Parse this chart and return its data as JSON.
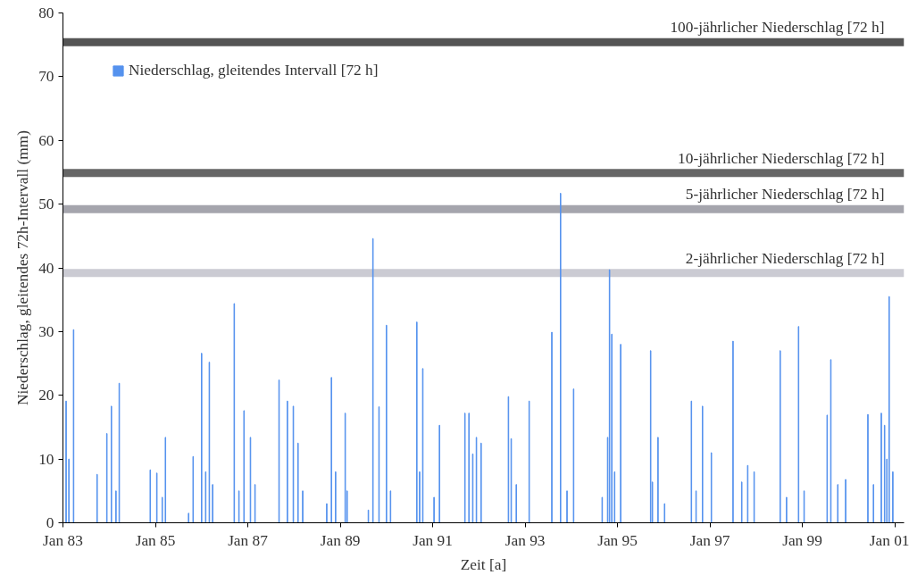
{
  "chart_data": {
    "type": "bar",
    "xlabel": "Zeit [a]",
    "ylabel": "Niederschlag, gleitendes 72h-Intervall (mm)",
    "x": [
      "1983-01-26",
      "1983-02-17",
      "1983-03-26",
      "1983-09-28",
      "1983-12-14",
      "1984-01-19",
      "1984-02-24",
      "1984-03-21",
      "1984-11-21",
      "1985-01-12",
      "1985-02-24",
      "1985-03-21",
      "1985-09-20",
      "1985-10-26",
      "1986-01-01",
      "1986-02-02",
      "1986-03-03",
      "1986-03-29",
      "1986-09-16",
      "1986-10-23",
      "1986-12-02",
      "1987-01-22",
      "1987-02-27",
      "1987-09-05",
      "1987-11-10",
      "1987-12-27",
      "1988-02-02",
      "1988-03-10",
      "1988-09-16",
      "1988-10-23",
      "1988-11-25",
      "1989-02-09",
      "1989-02-24",
      "1989-08-11",
      "1989-09-16",
      "1989-11-03",
      "1990-01-01",
      "1990-02-02",
      "1990-08-29",
      "1990-09-20",
      "1990-10-15",
      "1991-01-12",
      "1991-02-24",
      "1991-09-13",
      "1991-10-15",
      "1991-11-14",
      "1991-12-13",
      "1992-01-19",
      "1992-08-22",
      "1992-09-13",
      "1992-10-23",
      "1993-02-02",
      "1993-07-31",
      "1993-10-08",
      "1993-11-28",
      "1994-01-19",
      "1994-09-02",
      "1994-10-15",
      "1994-10-30",
      "1994-11-17",
      "1994-12-09",
      "1995-01-26",
      "1995-09-20",
      "1995-10-04",
      "1995-11-17",
      "1996-01-08",
      "1996-08-07",
      "1996-09-13",
      "1996-11-03",
      "1997-01-12",
      "1997-07-02",
      "1997-09-09",
      "1997-10-26",
      "1997-12-16",
      "1998-07-10",
      "1998-08-29",
      "1998-12-02",
      "1999-01-15",
      "1999-07-16",
      "1999-08-14",
      "1999-10-08",
      "1999-12-09",
      "2000-06-02",
      "2000-07-16",
      "2000-09-16",
      "2000-10-12",
      "2000-10-30",
      "2000-11-17",
      "2000-12-16"
    ],
    "series": [
      {
        "name": "Niederschlag, gleitendes Intervall [72 h]",
        "color": "#5592ee",
        "values": [
          19.1,
          10,
          30.3,
          7.6,
          14,
          18.3,
          5,
          21.9,
          8.3,
          7.8,
          4,
          13.4,
          1.5,
          10.4,
          26.6,
          8,
          25.2,
          6,
          34.4,
          5,
          17.6,
          13.4,
          6,
          22.4,
          19.1,
          18.3,
          12.5,
          5,
          3,
          22.8,
          8,
          17.2,
          5,
          2,
          44.6,
          18.2,
          31,
          5,
          31.5,
          8,
          24.2,
          4,
          15.3,
          17.2,
          17.2,
          10.8,
          13.4,
          12.5,
          19.8,
          13.2,
          6,
          19.1,
          29.9,
          51.7,
          5,
          21,
          4,
          13.4,
          39.7,
          29.6,
          8,
          28,
          27,
          6.4,
          13.4,
          3,
          19.1,
          5,
          18.3,
          11,
          28.5,
          6.4,
          9,
          8,
          27,
          4,
          30.8,
          5,
          16.9,
          25.6,
          6,
          6.8,
          17,
          6,
          17.2,
          15.3,
          10,
          35.5,
          8
        ]
      }
    ],
    "xlim": [
      "1983-01-01",
      "2001-03-15"
    ],
    "ylim": [
      0,
      80
    ],
    "xticks": [
      {
        "value": "1983-01-01",
        "label": "Jan 83"
      },
      {
        "value": "1985-01-01",
        "label": "Jan 85"
      },
      {
        "value": "1987-01-01",
        "label": "Jan 87"
      },
      {
        "value": "1989-01-01",
        "label": "Jan 89"
      },
      {
        "value": "1991-01-01",
        "label": "Jan 91"
      },
      {
        "value": "1993-01-01",
        "label": "Jan 93"
      },
      {
        "value": "1995-01-01",
        "label": "Jan 95"
      },
      {
        "value": "1997-01-01",
        "label": "Jan 97"
      },
      {
        "value": "1999-01-01",
        "label": "Jan 99"
      },
      {
        "value": "2001-01-01",
        "label": "Jan 01"
      }
    ],
    "yticks": [
      0,
      10,
      20,
      30,
      40,
      50,
      60,
      70,
      80
    ],
    "ref_lines": [
      {
        "axis": "y",
        "value": 75.4,
        "label": "100-jährlicher Niederschlag [72 h]",
        "color": "#555555"
      },
      {
        "axis": "y",
        "value": 54.9,
        "label": "10-jährlicher Niederschlag [72 h]",
        "color": "#666666"
      },
      {
        "axis": "y",
        "value": 49.2,
        "label": "5-jährlicher Niederschlag [72 h]",
        "color": "#a5a5ad"
      },
      {
        "axis": "y",
        "value": 39.2,
        "label": "2-jährlicher Niederschlag [72 h]",
        "color": "#cbcbd3"
      }
    ],
    "grid": false,
    "legend": "top left"
  }
}
